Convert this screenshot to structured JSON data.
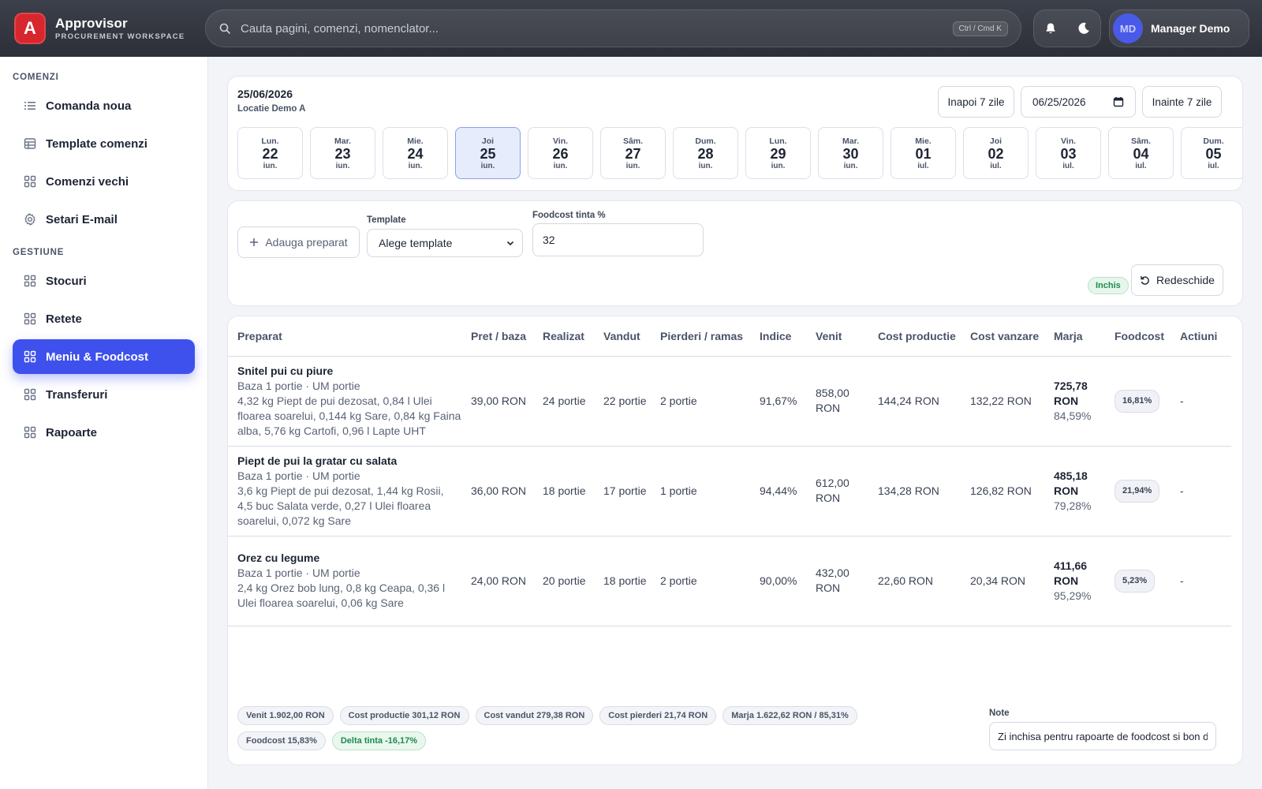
{
  "brand": {
    "name": "Approvisor",
    "subtitle": "PROCUREMENT WORKSPACE",
    "logo_letter": "A"
  },
  "search": {
    "placeholder": "Cauta pagini, comenzi, nomenclator...",
    "shortcut": "Ctrl / Cmd K"
  },
  "header": {
    "icons": [
      "bell-icon",
      "moon-icon"
    ],
    "user": {
      "initials": "MD",
      "name": "Manager Demo"
    }
  },
  "sidebar": {
    "sections": [
      {
        "title": "COMENZI",
        "items": [
          {
            "label": "Comanda noua",
            "icon": "list-icon"
          },
          {
            "label": "Template comenzi",
            "icon": "table-icon"
          },
          {
            "label": "Comenzi vechi",
            "icon": "grid-icon"
          },
          {
            "label": "Setari E-mail",
            "icon": "gear-icon"
          }
        ]
      },
      {
        "title": "GESTIUNE",
        "items": [
          {
            "label": "Stocuri",
            "icon": "grid-icon"
          },
          {
            "label": "Retete",
            "icon": "grid-icon"
          },
          {
            "label": "Meniu & Foodcost",
            "icon": "grid-icon",
            "active": true
          },
          {
            "label": "Transferuri",
            "icon": "grid-icon"
          },
          {
            "label": "Rapoarte",
            "icon": "grid-icon"
          }
        ]
      }
    ]
  },
  "date_panel": {
    "selected_date": "25/06/2026",
    "location": "Locatie Demo A",
    "back_label": "Inapoi 7 zile",
    "date_input": "06/25/2026",
    "forward_label": "Inainte 7 zile",
    "days": [
      {
        "name": "Lun.",
        "num": "22",
        "month": "iun."
      },
      {
        "name": "Mar.",
        "num": "23",
        "month": "iun."
      },
      {
        "name": "Mie.",
        "num": "24",
        "month": "iun."
      },
      {
        "name": "Joi",
        "num": "25",
        "month": "iun.",
        "active": true
      },
      {
        "name": "Vin.",
        "num": "26",
        "month": "iun."
      },
      {
        "name": "Sâm.",
        "num": "27",
        "month": "iun."
      },
      {
        "name": "Dum.",
        "num": "28",
        "month": "iun."
      },
      {
        "name": "Lun.",
        "num": "29",
        "month": "iun."
      },
      {
        "name": "Mar.",
        "num": "30",
        "month": "iun."
      },
      {
        "name": "Mie.",
        "num": "01",
        "month": "iul."
      },
      {
        "name": "Joi",
        "num": "02",
        "month": "iul."
      },
      {
        "name": "Vin.",
        "num": "03",
        "month": "iul."
      },
      {
        "name": "Sâm.",
        "num": "04",
        "month": "iul."
      },
      {
        "name": "Dum.",
        "num": "05",
        "month": "iul."
      }
    ]
  },
  "form": {
    "add_label": "Adauga preparat",
    "template_label": "Template",
    "template_value": "Alege template",
    "foodcost_label": "Foodcost tinta %",
    "foodcost_value": "32",
    "status_badge": "Inchis",
    "reopen_label": "Redeschide"
  },
  "table": {
    "columns": [
      "Preparat",
      "Pret / baza",
      "Realizat",
      "Vandut",
      "Pierderi / ramas",
      "Indice",
      "Venit",
      "Cost productie",
      "Cost vanzare",
      "Marja",
      "Foodcost",
      "Actiuni"
    ],
    "rows": [
      {
        "name": "Snitel pui cu piure",
        "base": "Baza 1 portie · UM portie",
        "ingredients": "4,32 kg Piept de pui dezosat, 0,84 l Ulei floarea soarelui, 0,144 kg Sare, 0,84 kg Faina alba, 5,76 kg Cartofi, 0,96 l Lapte UHT",
        "price": "39,00 RON",
        "realized": "24 portie",
        "sold": "22 portie",
        "loss": "2 portie",
        "index": "91,67%",
        "revenue": "858,00 RON",
        "cost_prod": "144,24 RON",
        "cost_sale": "132,22 RON",
        "margin": "725,78 RON",
        "margin_pct": "84,59%",
        "foodcost": "16,81%",
        "actions": "-"
      },
      {
        "name": "Piept de pui la gratar cu salata",
        "base": "Baza 1 portie · UM portie",
        "ingredients": "3,6 kg Piept de pui dezosat, 1,44 kg Rosii, 4,5 buc Salata verde, 0,27 l Ulei floarea soarelui, 0,072 kg Sare",
        "price": "36,00 RON",
        "realized": "18 portie",
        "sold": "17 portie",
        "loss": "1 portie",
        "index": "94,44%",
        "revenue": "612,00 RON",
        "cost_prod": "134,28 RON",
        "cost_sale": "126,82 RON",
        "margin": "485,18 RON",
        "margin_pct": "79,28%",
        "foodcost": "21,94%",
        "actions": "-"
      },
      {
        "name": "Orez cu legume",
        "base": "Baza 1 portie · UM portie",
        "ingredients": "2,4 kg Orez bob lung, 0,8 kg Ceapa, 0,36 l Ulei floarea soarelui, 0,06 kg Sare",
        "price": "24,00 RON",
        "realized": "20 portie",
        "sold": "18 portie",
        "loss": "2 portie",
        "index": "90,00%",
        "revenue": "432,00 RON",
        "cost_prod": "22,60 RON",
        "cost_sale": "20,34 RON",
        "margin": "411,66 RON",
        "margin_pct": "95,29%",
        "foodcost": "5,23%",
        "actions": "-"
      }
    ]
  },
  "summary": {
    "chips": [
      {
        "text": "Venit 1.902,00 RON"
      },
      {
        "text": "Cost productie 301,12 RON"
      },
      {
        "text": "Cost vandut 279,38 RON"
      },
      {
        "text": "Cost pierderi 21,74 RON"
      },
      {
        "text": "Marja 1.622,62 RON / 85,31%"
      },
      {
        "text": "Foodcost 15,83%"
      },
      {
        "text": "Delta tinta -16,17%",
        "green": true
      }
    ],
    "note_label": "Note",
    "note_value": "Zi inchisa pentru rapoarte de foodcost si bon de consum"
  }
}
